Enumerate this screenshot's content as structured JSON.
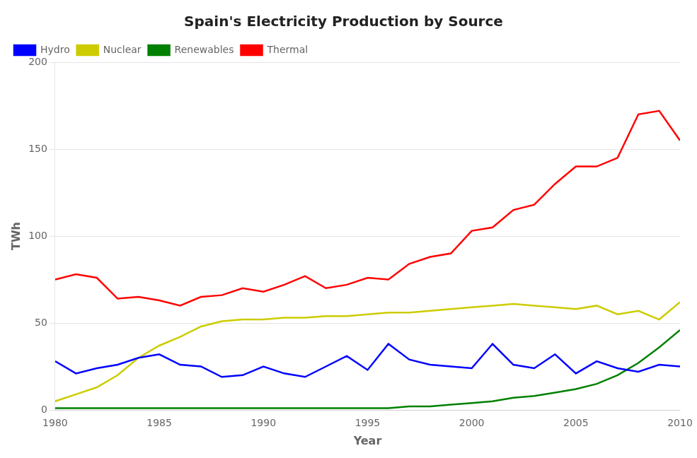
{
  "chart_data": {
    "type": "line",
    "title": "Spain's Electricity Production by Source",
    "xlabel": "Year",
    "ylabel": "TWh",
    "x": [
      1980,
      1981,
      1982,
      1983,
      1984,
      1985,
      1986,
      1987,
      1988,
      1989,
      1990,
      1991,
      1992,
      1993,
      1994,
      1995,
      1996,
      1997,
      1998,
      1999,
      2000,
      2001,
      2002,
      2003,
      2004,
      2005,
      2006,
      2007,
      2008,
      2009,
      2010
    ],
    "series": [
      {
        "name": "Hydro",
        "color": "#0000FF",
        "values": [
          28,
          21,
          24,
          26,
          30,
          32,
          26,
          25,
          19,
          20,
          25,
          21,
          19,
          25,
          31,
          23,
          38,
          29,
          26,
          25,
          24,
          38,
          26,
          24,
          32,
          21,
          28,
          24,
          22,
          26,
          25
        ]
      },
      {
        "name": "Nuclear",
        "color": "#CCCC00",
        "values": [
          5,
          9,
          13,
          20,
          30,
          37,
          42,
          48,
          51,
          52,
          52,
          53,
          53,
          54,
          54,
          55,
          56,
          56,
          57,
          58,
          59,
          60,
          61,
          60,
          59,
          58,
          60,
          55,
          57,
          52,
          62
        ]
      },
      {
        "name": "Renewables",
        "color": "#008000",
        "values": [
          1,
          1,
          1,
          1,
          1,
          1,
          1,
          1,
          1,
          1,
          1,
          1,
          1,
          1,
          1,
          1,
          1,
          2,
          2,
          3,
          4,
          5,
          7,
          8,
          10,
          12,
          15,
          20,
          27,
          36,
          46
        ]
      },
      {
        "name": "Thermal",
        "color": "#FF0000",
        "values": [
          75,
          78,
          76,
          64,
          65,
          63,
          60,
          65,
          66,
          70,
          68,
          72,
          77,
          70,
          72,
          76,
          75,
          84,
          88,
          90,
          103,
          105,
          115,
          118,
          130,
          140,
          140,
          145,
          170,
          172,
          155
        ]
      }
    ],
    "xlim": [
      1980,
      2010
    ],
    "ylim": [
      0,
      200
    ],
    "xticks": [
      1980,
      1985,
      1990,
      1995,
      2000,
      2005,
      2010
    ],
    "yticks": [
      0,
      50,
      100,
      150,
      200
    ],
    "grid": "y",
    "legend": "upper left"
  }
}
